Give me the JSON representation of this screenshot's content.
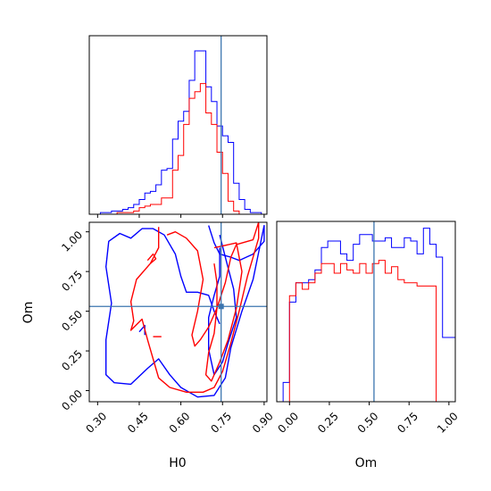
{
  "chart_data": [
    {
      "type": "histogram",
      "parameter": "H0",
      "xlim": [
        0.27,
        0.91
      ],
      "truth": 0.745,
      "bin_edges": [
        0.27,
        0.29,
        0.31,
        0.33,
        0.35,
        0.37,
        0.39,
        0.41,
        0.43,
        0.45,
        0.47,
        0.49,
        0.51,
        0.53,
        0.55,
        0.57,
        0.59,
        0.61,
        0.63,
        0.65,
        0.67,
        0.69,
        0.71,
        0.73,
        0.75,
        0.77,
        0.79,
        0.81,
        0.83,
        0.85,
        0.87,
        0.89,
        0.91
      ],
      "series": [
        {
          "color": "#0000ff",
          "values": [
            0,
            0,
            0.01,
            0.01,
            0.02,
            0.02,
            0.03,
            0.04,
            0.06,
            0.09,
            0.13,
            0.14,
            0.18,
            0.27,
            0.28,
            0.46,
            0.57,
            0.63,
            0.82,
            1.0,
            1.0,
            0.78,
            0.69,
            0.54,
            0.48,
            0.44,
            0.19,
            0.09,
            0.03,
            0.01,
            0.01,
            0
          ]
        },
        {
          "color": "#ff0000",
          "values": [
            0,
            0,
            0,
            0,
            0,
            0.01,
            0.01,
            0.01,
            0.02,
            0.04,
            0.05,
            0.06,
            0.06,
            0.1,
            0.1,
            0.27,
            0.36,
            0.55,
            0.71,
            0.75,
            0.8,
            0.62,
            0.55,
            0.38,
            0.25,
            0.08,
            0.02,
            0,
            0,
            0,
            0,
            0
          ]
        }
      ]
    },
    {
      "type": "contour",
      "x_parameter": "H0",
      "y_parameter": "Om",
      "xlim": [
        0.27,
        0.91
      ],
      "ylim": [
        -0.07,
        1.06
      ],
      "truth": [
        0.745,
        0.53
      ],
      "xticks": [
        "0.30",
        "0.45",
        "0.60",
        "0.75",
        "0.90"
      ],
      "yticks": [
        "0.00",
        "0.25",
        "0.50",
        "0.75",
        "1.00"
      ],
      "xlabel": "H0",
      "ylabel": "Om",
      "series": [
        {
          "color": "#0000ff",
          "contours": [
            [
              [
                0.7,
                1.04
              ],
              [
                0.72,
                0.93
              ],
              [
                0.74,
                0.86
              ],
              [
                0.78,
                0.84
              ],
              [
                0.81,
                0.82
              ],
              [
                0.86,
                0.86
              ],
              [
                0.9,
                0.94
              ],
              [
                0.9,
                1.04
              ],
              [
                0.86,
                0.7
              ],
              [
                0.82,
                0.5
              ],
              [
                0.78,
                0.27
              ],
              [
                0.76,
                0.08
              ],
              [
                0.72,
                -0.03
              ],
              [
                0.66,
                -0.04
              ],
              [
                0.6,
                0.02
              ],
              [
                0.56,
                0.1
              ],
              [
                0.52,
                0.2
              ],
              [
                0.48,
                0.14
              ],
              [
                0.42,
                0.04
              ],
              [
                0.36,
                0.05
              ],
              [
                0.33,
                0.1
              ],
              [
                0.33,
                0.32
              ],
              [
                0.35,
                0.55
              ],
              [
                0.33,
                0.78
              ],
              [
                0.34,
                0.94
              ],
              [
                0.38,
                0.99
              ],
              [
                0.42,
                0.96
              ],
              [
                0.46,
                1.02
              ],
              [
                0.5,
                1.02
              ],
              [
                0.54,
                0.98
              ],
              [
                0.58,
                0.86
              ],
              [
                0.6,
                0.72
              ],
              [
                0.62,
                0.62
              ],
              [
                0.66,
                0.62
              ],
              [
                0.7,
                0.6
              ],
              [
                0.72,
                0.5
              ],
              [
                0.74,
                0.42
              ]
            ],
            [
              [
                0.74,
                0.98
              ],
              [
                0.76,
                0.84
              ],
              [
                0.79,
                0.64
              ],
              [
                0.8,
                0.46
              ],
              [
                0.77,
                0.3
              ],
              [
                0.75,
                0.18
              ],
              [
                0.72,
                0.1
              ],
              [
                0.7,
                0.26
              ],
              [
                0.7,
                0.46
              ],
              [
                0.72,
                0.6
              ],
              [
                0.74,
                0.72
              ],
              [
                0.74,
                0.9
              ]
            ],
            [
              [
                0.45,
                0.37
              ],
              [
                0.47,
                0.41
              ],
              [
                0.47,
                0.35
              ]
            ]
          ]
        },
        {
          "color": "#ff0000",
          "contours": [
            [
              [
                0.52,
                1.03
              ],
              [
                0.52,
                0.9
              ],
              [
                0.49,
                0.8
              ],
              [
                0.44,
                0.7
              ],
              [
                0.42,
                0.56
              ],
              [
                0.43,
                0.44
              ],
              [
                0.42,
                0.38
              ],
              [
                0.46,
                0.45
              ],
              [
                0.48,
                0.32
              ],
              [
                0.5,
                0.2
              ],
              [
                0.52,
                0.08
              ],
              [
                0.56,
                0.02
              ],
              [
                0.62,
                -0.01
              ],
              [
                0.68,
                -0.01
              ],
              [
                0.72,
                0.02
              ],
              [
                0.75,
                0.12
              ],
              [
                0.78,
                0.3
              ],
              [
                0.81,
                0.5
              ],
              [
                0.84,
                0.72
              ],
              [
                0.86,
                0.84
              ],
              [
                0.88,
                0.96
              ],
              [
                0.88,
                1.06
              ],
              [
                0.86,
                0.95
              ],
              [
                0.8,
                0.92
              ],
              [
                0.78,
                0.84
              ],
              [
                0.76,
                0.68
              ],
              [
                0.73,
                0.52
              ],
              [
                0.7,
                0.4
              ],
              [
                0.67,
                0.32
              ],
              [
                0.65,
                0.28
              ],
              [
                0.64,
                0.35
              ],
              [
                0.66,
                0.5
              ],
              [
                0.68,
                0.7
              ],
              [
                0.66,
                0.88
              ],
              [
                0.62,
                0.96
              ],
              [
                0.58,
                1.0
              ],
              [
                0.55,
                0.98
              ]
            ],
            [
              [
                0.72,
                0.9
              ],
              [
                0.8,
                0.93
              ],
              [
                0.82,
                0.75
              ],
              [
                0.8,
                0.52
              ],
              [
                0.77,
                0.32
              ],
              [
                0.74,
                0.18
              ],
              [
                0.71,
                0.06
              ],
              [
                0.69,
                0.1
              ],
              [
                0.7,
                0.24
              ],
              [
                0.72,
                0.36
              ],
              [
                0.73,
                0.52
              ],
              [
                0.73,
                0.68
              ],
              [
                0.72,
                0.8
              ]
            ],
            [
              [
                0.48,
                0.82
              ],
              [
                0.5,
                0.86
              ],
              [
                0.51,
                0.83
              ],
              [
                0.49,
                0.8
              ]
            ],
            [
              [
                0.5,
                0.34
              ],
              [
                0.53,
                0.34
              ]
            ]
          ]
        }
      ]
    },
    {
      "type": "histogram",
      "parameter": "Om",
      "xlim": [
        -0.08,
        1.04
      ],
      "truth": 0.53,
      "bin_edges": [
        -0.04,
        0.0,
        0.04,
        0.08,
        0.12,
        0.16,
        0.2,
        0.24,
        0.28,
        0.32,
        0.36,
        0.4,
        0.44,
        0.48,
        0.52,
        0.56,
        0.6,
        0.64,
        0.68,
        0.72,
        0.76,
        0.8,
        0.84,
        0.88,
        0.92,
        0.96,
        1.0,
        1.04
      ],
      "series": [
        {
          "color": "#0000ff",
          "values": [
            0.12,
            0.62,
            0.74,
            0.74,
            0.76,
            0.82,
            0.96,
            1.0,
            1.0,
            0.92,
            0.88,
            0.98,
            1.04,
            1.04,
            1.0,
            1.0,
            1.02,
            0.96,
            0.96,
            1.02,
            1.0,
            0.92,
            1.08,
            0.98,
            0.9,
            0.4,
            0.4
          ]
        },
        {
          "color": "#ff0000",
          "values": [
            0,
            0.66,
            0.74,
            0.7,
            0.74,
            0.8,
            0.86,
            0.86,
            0.8,
            0.86,
            0.82,
            0.8,
            0.86,
            0.8,
            0.86,
            0.88,
            0.8,
            0.84,
            0.76,
            0.74,
            0.74,
            0.72,
            0.72,
            0.72,
            0,
            0,
            0
          ]
        }
      ]
    }
  ]
}
